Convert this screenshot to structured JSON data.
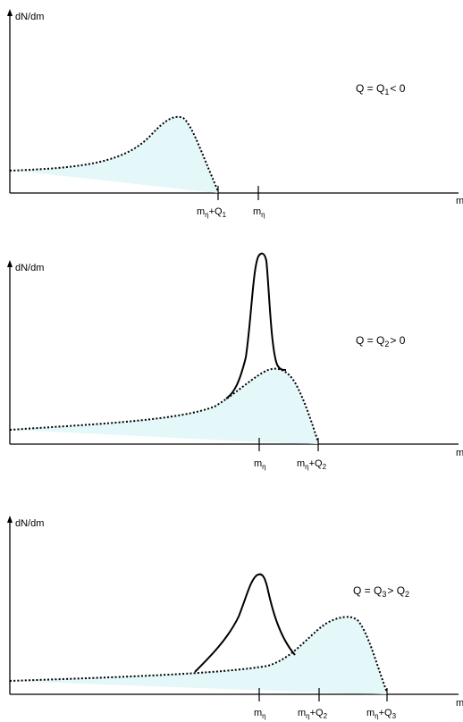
{
  "panels": [
    {
      "y_label": "dN/dm",
      "x_label": "m",
      "condition": {
        "lhs": "Q = Q",
        "sub": "1",
        "rhs": "< 0"
      },
      "ticks": [
        {
          "main": "m",
          "sub": "η",
          "suffix": "+Q",
          "suffix_sub": "1"
        },
        {
          "main": "m",
          "sub": "η",
          "suffix": "",
          "suffix_sub": ""
        }
      ]
    },
    {
      "y_label": "dN/dm",
      "x_label": "m",
      "condition": {
        "lhs": "Q = Q",
        "sub": "2",
        "rhs": "> 0"
      },
      "ticks": [
        {
          "main": "m",
          "sub": "η",
          "suffix": "",
          "suffix_sub": ""
        },
        {
          "main": "m",
          "sub": "η",
          "suffix": "+Q",
          "suffix_sub": "2"
        }
      ]
    },
    {
      "y_label": "dN/dm",
      "x_label": "m",
      "condition": {
        "lhs": "Q = Q",
        "sub": "3",
        "rhs": "> Q",
        "rhs_sub": "2"
      },
      "ticks": [
        {
          "main": "m",
          "sub": "η",
          "suffix": "",
          "suffix_sub": ""
        },
        {
          "main": "m",
          "sub": "η",
          "suffix": "+Q",
          "suffix_sub": "2"
        },
        {
          "main": "m",
          "sub": "η",
          "suffix": "+Q",
          "suffix_sub": "3"
        }
      ]
    }
  ]
}
